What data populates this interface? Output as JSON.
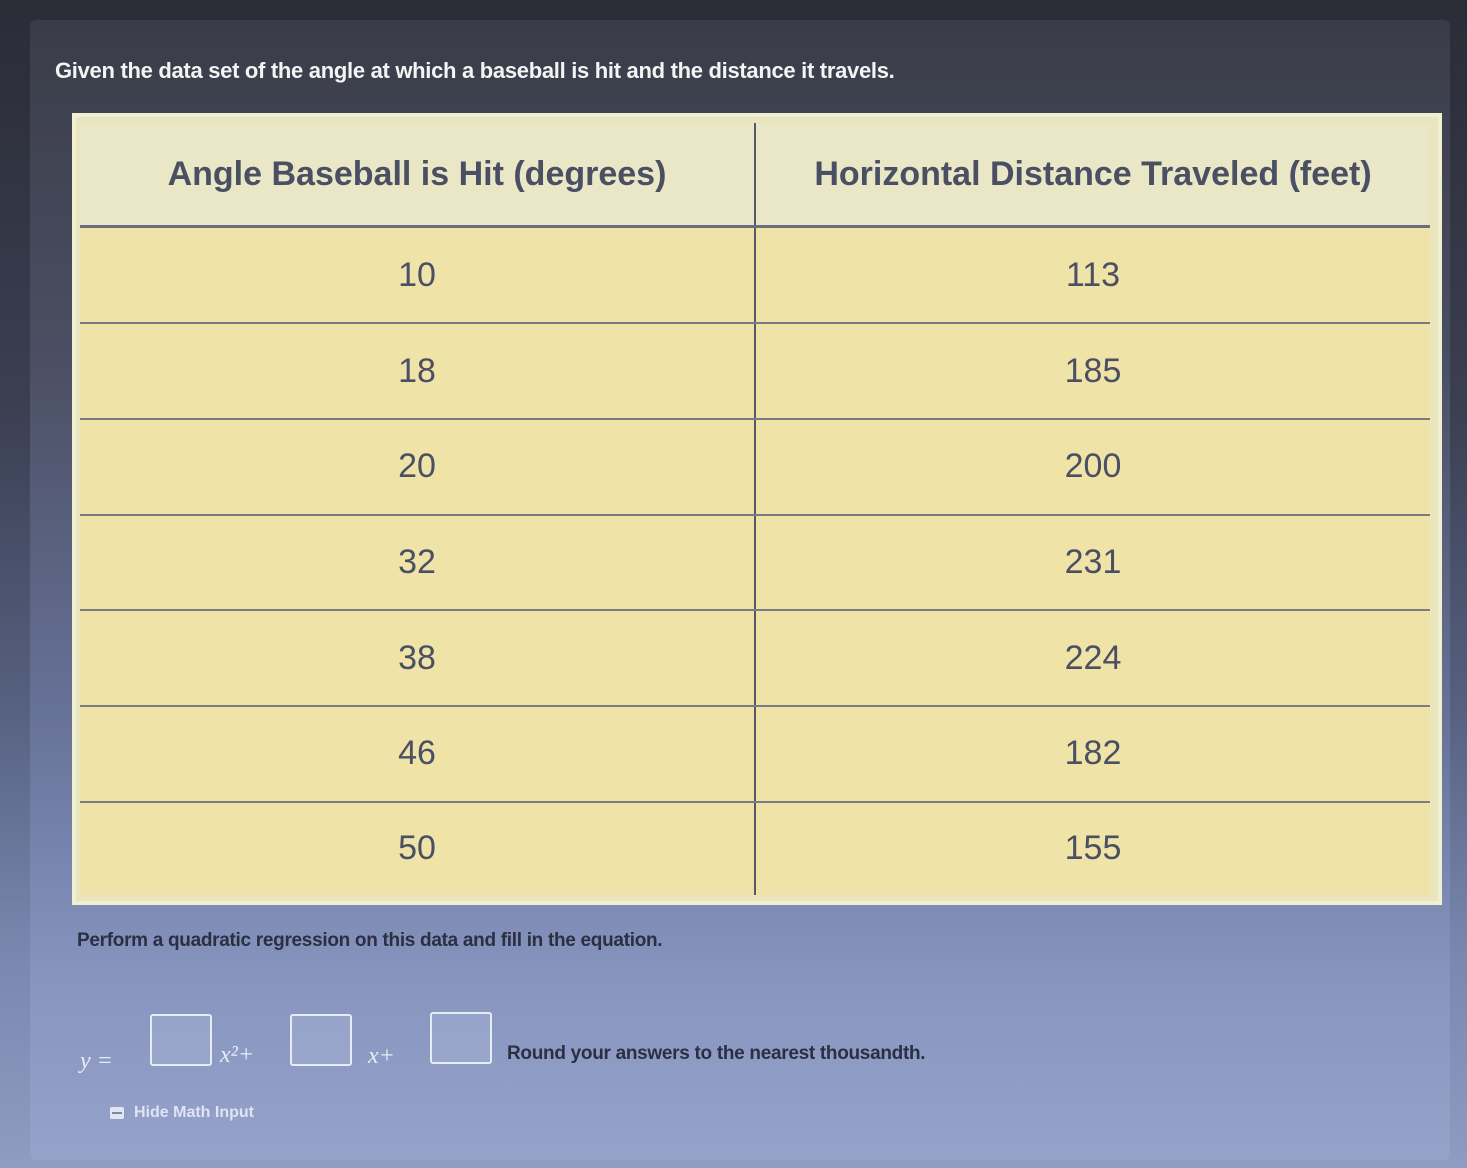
{
  "question": {
    "text": "Given the data set of the angle at which a baseball is hit and the distance it travels."
  },
  "table": {
    "headers": [
      "Angle Baseball is Hit (degrees)",
      "Horizontal Distance Traveled (feet)"
    ],
    "rows": [
      [
        "10",
        "113"
      ],
      [
        "18",
        "185"
      ],
      [
        "20",
        "200"
      ],
      [
        "32",
        "231"
      ],
      [
        "38",
        "224"
      ],
      [
        "46",
        "182"
      ],
      [
        "50",
        "155"
      ]
    ]
  },
  "instruction": {
    "text": "Perform a quadratic regression on this data and fill in the equation."
  },
  "equation": {
    "y_label": "y =",
    "x2_label": "x²+",
    "x_label": "x+",
    "inputs": [
      "",
      "",
      ""
    ],
    "round_note": "Round your answers to the nearest thousandth."
  },
  "hide_math": {
    "label": "Hide Math Input",
    "icon": "keyboard-icon"
  }
}
